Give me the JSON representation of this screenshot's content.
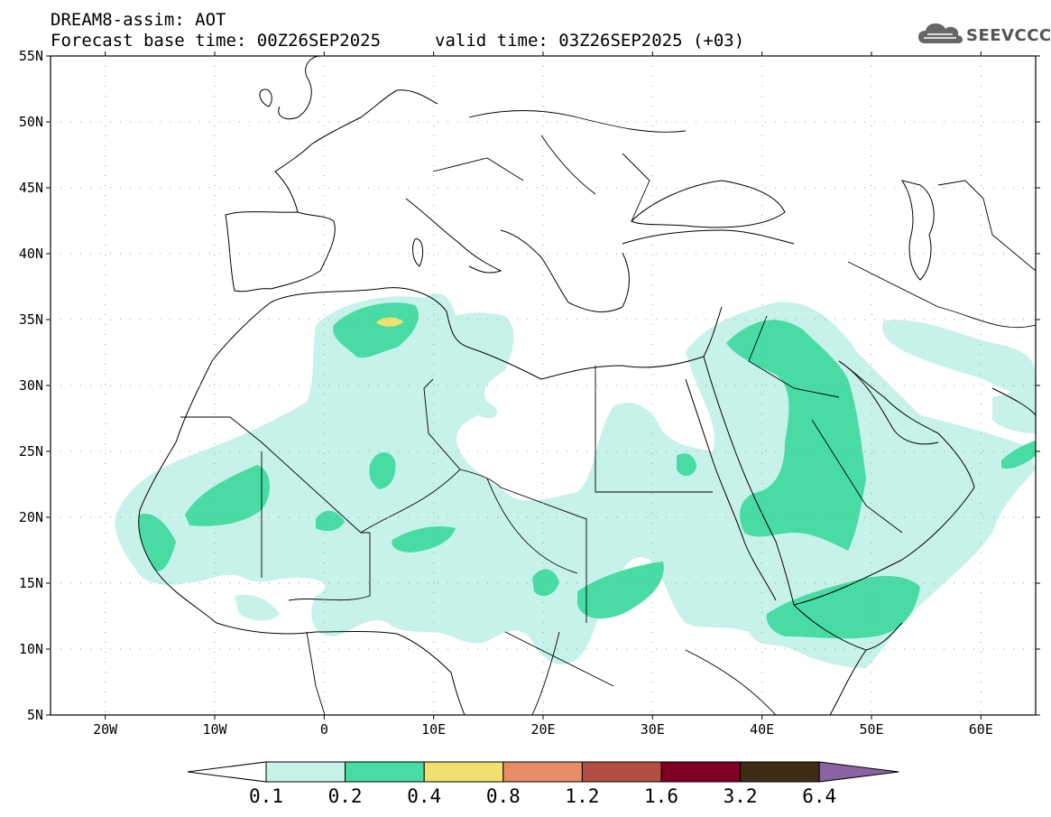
{
  "header": {
    "title_line1": "DREAM8-assim: AOT",
    "title_line2": "Forecast base time: 00Z26SEP2025",
    "valid_time": "valid time: 03Z26SEP2025 (+03)",
    "logo_text": "SEEVCCC",
    "logo_icon": "cloud-icon"
  },
  "map": {
    "lat_labels": [
      "55N",
      "50N",
      "45N",
      "40N",
      "35N",
      "30N",
      "25N",
      "20N",
      "15N",
      "10N",
      "5N"
    ],
    "lon_labels": [
      "20W",
      "10W",
      "0",
      "10E",
      "20E",
      "30E",
      "40E",
      "50E",
      "60E"
    ],
    "lat_range": [
      5,
      55
    ],
    "lon_range": [
      -25,
      65
    ],
    "grid": true
  },
  "colorbar": {
    "labels": [
      "0.1",
      "0.2",
      "0.4",
      "0.8",
      "1.2",
      "1.6",
      "3.2",
      "6.4"
    ],
    "colors": [
      "#c6f2ea",
      "#48dca4",
      "#f0e06e",
      "#e88c66",
      "#b34e40",
      "#7f0022",
      "#3e2c17",
      "#8a63a3"
    ]
  }
}
